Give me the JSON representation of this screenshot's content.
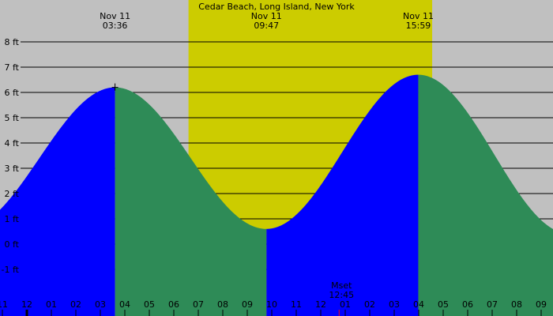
{
  "chart_data": {
    "type": "area",
    "title": "Cedar Beach, Long Island, New York",
    "xlabel": "",
    "ylabel": "",
    "y_unit": "ft",
    "ylim": [
      -1.5,
      9.7
    ],
    "y_ticks": [
      8,
      7,
      6,
      5,
      4,
      3,
      2,
      1,
      0,
      -1
    ],
    "y_tick_labels": [
      "8 ft",
      "7 ft",
      "6 ft",
      "5 ft",
      "4 ft",
      "3 ft",
      "2 ft",
      "1 ft",
      "0 ft",
      "-1 ft"
    ],
    "x_tick_labels": [
      "11",
      "12",
      "01",
      "02",
      "03",
      "04",
      "05",
      "06",
      "07",
      "08",
      "09",
      "10",
      "11",
      "12",
      "01",
      "02",
      "03",
      "04",
      "05",
      "06",
      "07",
      "08",
      "09"
    ],
    "x_tick_hours": [
      -1,
      0,
      1,
      2,
      3,
      4,
      5,
      6,
      7,
      8,
      9,
      10,
      11,
      12,
      13,
      14,
      15,
      16,
      17,
      18,
      19,
      20,
      21
    ],
    "grid": true,
    "legend": null,
    "tide_extremes": [
      {
        "type": "high",
        "date": "Nov 11",
        "time": "03:36",
        "hour": 3.6,
        "height_ft": 6.2
      },
      {
        "type": "low",
        "date": "Nov 11",
        "time": "09:47",
        "hour": 9.783,
        "height_ft": 0.6
      },
      {
        "type": "high",
        "date": "Nov 11",
        "time": "15:59",
        "hour": 15.983,
        "height_ft": 6.7
      }
    ],
    "series": [
      {
        "name": "tide height (rising)",
        "color": "#0000ff"
      },
      {
        "name": "tide height (falling)",
        "color": "#2e8b57"
      }
    ],
    "daylight": {
      "start_hour": 6.6,
      "end_hour": 16.55,
      "color": "#cccc00"
    },
    "moon_events": [
      {
        "label": "Mset",
        "time": "12:45",
        "hour": 12.75,
        "marker_color": "#ff0000"
      }
    ],
    "x_range_hours": [
      -1.1,
      21.5
    ]
  },
  "colors": {
    "background": "#c0c0c0",
    "daylight": "#cccc00",
    "rising": "#0000ff",
    "falling": "#2e8b57",
    "grid": "#000000"
  }
}
